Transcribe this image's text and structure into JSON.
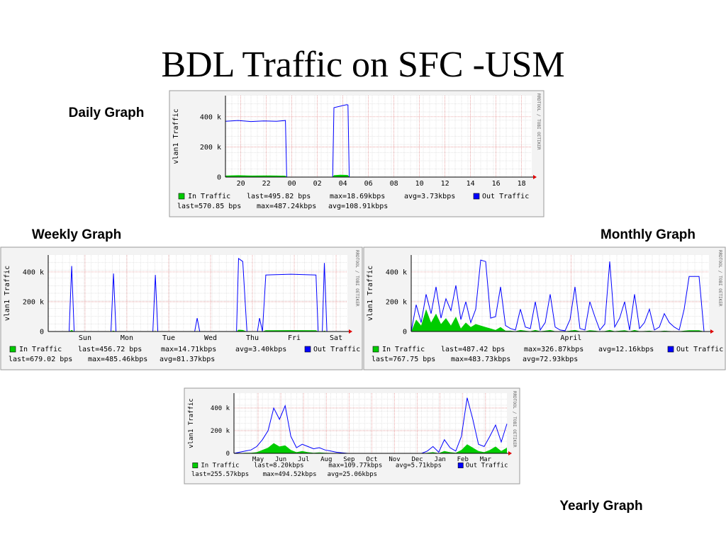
{
  "title": "BDL Traffic on SFC -USM",
  "chart_data": [
    {
      "type": "line",
      "caption": "Daily Graph",
      "ylabel": "vlan1 Traffic",
      "side_text": "RRDTOOL / TOBI OETIKER",
      "grid": true,
      "xlim": [
        0,
        24
      ],
      "xticks": [
        {
          "value": 1.2,
          "label": "20"
        },
        {
          "value": 3.2,
          "label": "22"
        },
        {
          "value": 5.2,
          "label": "00"
        },
        {
          "value": 7.2,
          "label": "02"
        },
        {
          "value": 9.2,
          "label": "04"
        },
        {
          "value": 11.2,
          "label": "06"
        },
        {
          "value": 13.2,
          "label": "08"
        },
        {
          "value": 15.2,
          "label": "10"
        },
        {
          "value": 17.2,
          "label": "12"
        },
        {
          "value": 19.2,
          "label": "14"
        },
        {
          "value": 21.2,
          "label": "16"
        },
        {
          "value": 23.2,
          "label": "18"
        }
      ],
      "ylim": [
        0,
        540000
      ],
      "yticks": [
        0,
        {
          "value": 200000,
          "label": "200 k"
        },
        {
          "value": 400000,
          "label": "400 k"
        }
      ],
      "x": [
        0,
        1,
        2,
        3,
        4,
        4.7,
        4.8,
        8.4,
        8.5,
        9,
        9.5,
        9.6,
        9.7,
        16,
        24
      ],
      "series": [
        {
          "name": "In Traffic",
          "color": "#00cc00",
          "style": "area",
          "stats": [
            "last=495.82 bps",
            "max=18.69kbps",
            "avg=3.73kbps"
          ],
          "values": [
            10000,
            12000,
            10000,
            11000,
            10000,
            9000,
            0,
            0,
            12000,
            15000,
            14000,
            13000,
            0,
            0,
            0
          ]
        },
        {
          "name": "Out Traffic",
          "color": "#0000ff",
          "style": "line",
          "stats": [
            "last=570.85 bps",
            "max=487.24kbps",
            "avg=108.91kbps"
          ],
          "values": [
            370000,
            375000,
            368000,
            372000,
            370000,
            375000,
            0,
            0,
            460000,
            470000,
            480000,
            478000,
            0,
            0,
            0
          ]
        }
      ]
    },
    {
      "type": "line",
      "caption": "Weekly Graph",
      "ylabel": "vlan1 Traffic",
      "side_text": "RRDTOOL / TOBI OETIKER",
      "grid": true,
      "xlim": [
        0,
        7.15
      ],
      "xticks": [
        {
          "value": 0.88,
          "label": "Sun"
        },
        {
          "value": 1.88,
          "label": "Mon"
        },
        {
          "value": 2.88,
          "label": "Tue"
        },
        {
          "value": 3.88,
          "label": "Wed"
        },
        {
          "value": 4.88,
          "label": "Thu"
        },
        {
          "value": 5.88,
          "label": "Fri"
        },
        {
          "value": 6.88,
          "label": "Sat"
        }
      ],
      "ylim": [
        0,
        514000
      ],
      "yticks": [
        0,
        {
          "value": 200000,
          "label": "200 k"
        },
        {
          "value": 400000,
          "label": "400 k"
        }
      ],
      "x": [
        0,
        0.5,
        0.56,
        0.62,
        0.7,
        1.5,
        1.56,
        1.62,
        1.7,
        2.5,
        2.56,
        2.62,
        2.8,
        3.5,
        3.56,
        3.62,
        4.0,
        4.5,
        4.55,
        4.65,
        4.75,
        5.0,
        5.05,
        5.12,
        5.2,
        5.8,
        6.4,
        6.45,
        6.55,
        6.6,
        6.66,
        6.8,
        7.15
      ],
      "series": [
        {
          "name": "In Traffic",
          "color": "#00cc00",
          "style": "area",
          "stats": [
            "last=456.72 bps",
            "max=14.71kbps",
            "avg=3.40kbps"
          ],
          "values": [
            0,
            0,
            10000,
            0,
            0,
            0,
            5000,
            0,
            0,
            0,
            4000,
            0,
            0,
            0,
            3000,
            0,
            0,
            0,
            12000,
            10000,
            0,
            0,
            3000,
            0,
            8000,
            9000,
            8000,
            0,
            0,
            5000,
            0,
            0,
            0
          ]
        },
        {
          "name": "Out Traffic",
          "color": "#0000ff",
          "style": "line",
          "stats": [
            "last=679.02 bps",
            "max=485.46kbps",
            "avg=81.37kbps"
          ],
          "values": [
            0,
            0,
            440000,
            0,
            0,
            0,
            390000,
            0,
            0,
            0,
            380000,
            0,
            0,
            0,
            90000,
            0,
            0,
            0,
            490000,
            470000,
            0,
            0,
            90000,
            0,
            380000,
            385000,
            380000,
            0,
            0,
            460000,
            0,
            0,
            0
          ]
        }
      ]
    },
    {
      "type": "line",
      "caption": "Monthly Graph",
      "ylabel": "vlan1 Traffic",
      "side_text": "RRDTOOL / TOBI OETIKER",
      "grid": true,
      "xlim": [
        0,
        30
      ],
      "xticks": [
        {
          "value": 16.1,
          "label": "April"
        }
      ],
      "ylim": [
        0,
        514000
      ],
      "yticks": [
        0,
        {
          "value": 200000,
          "label": "200 k"
        },
        {
          "value": 400000,
          "label": "400 k"
        }
      ],
      "x": [
        0,
        0.5,
        1,
        1.5,
        2,
        2.5,
        3,
        3.5,
        4,
        4.5,
        5,
        5.5,
        6,
        6.5,
        7,
        7.5,
        8,
        8.5,
        9,
        9.5,
        10,
        10.5,
        11,
        11.5,
        12,
        12.5,
        13,
        13.5,
        14,
        14.5,
        15,
        15.5,
        16,
        16.5,
        17,
        17.5,
        18,
        18.5,
        19,
        19.5,
        20,
        20.5,
        21,
        21.5,
        22,
        22.5,
        23,
        23.5,
        24,
        24.5,
        25,
        25.5,
        26,
        26.5,
        27,
        27.5,
        28,
        28.5,
        29,
        29.5,
        30
      ],
      "series": [
        {
          "name": "In Traffic",
          "color": "#00cc00",
          "style": "area",
          "stats": [
            "last=487.42 bps",
            "max=326.87kbps",
            "avg=12.16kbps"
          ],
          "values": [
            0,
            80000,
            40000,
            150000,
            60000,
            120000,
            50000,
            90000,
            40000,
            100000,
            20000,
            60000,
            30000,
            50000,
            40000,
            30000,
            20000,
            10000,
            30000,
            5000,
            5000,
            2000,
            10000,
            5000,
            2000,
            10000,
            2000,
            5000,
            10000,
            2000,
            2000,
            1000,
            5000,
            10000,
            2000,
            1000,
            8000,
            5000,
            1000,
            3000,
            10000,
            2000,
            5000,
            8000,
            1000,
            10000,
            2000,
            3000,
            5000,
            1000,
            2000,
            5000,
            3000,
            2000,
            1000,
            5000,
            8000,
            8000,
            8000,
            0,
            0
          ]
        },
        {
          "name": "Out Traffic",
          "color": "#0000ff",
          "style": "line",
          "stats": [
            "last=767.75 bps",
            "max=483.73kbps",
            "avg=72.93kbps"
          ],
          "values": [
            0,
            180000,
            60000,
            250000,
            120000,
            300000,
            90000,
            220000,
            140000,
            310000,
            80000,
            200000,
            60000,
            150000,
            480000,
            470000,
            90000,
            100000,
            300000,
            40000,
            20000,
            10000,
            150000,
            30000,
            20000,
            200000,
            10000,
            60000,
            250000,
            30000,
            10000,
            5000,
            80000,
            300000,
            20000,
            10000,
            200000,
            100000,
            10000,
            50000,
            470000,
            30000,
            90000,
            200000,
            10000,
            250000,
            20000,
            60000,
            150000,
            10000,
            30000,
            120000,
            60000,
            30000,
            10000,
            150000,
            370000,
            370000,
            370000,
            0,
            0
          ]
        }
      ]
    },
    {
      "type": "line",
      "caption": "Yearly Graph",
      "ylabel": "vlan1 Traffic",
      "side_text": "RRDTOOL / TOBI OETIKER",
      "grid": true,
      "xlim": [
        0,
        12
      ],
      "xticks": [
        {
          "value": 1.06,
          "label": "May"
        },
        {
          "value": 2.06,
          "label": "Jun"
        },
        {
          "value": 3.06,
          "label": "Jul"
        },
        {
          "value": 4.06,
          "label": "Aug"
        },
        {
          "value": 5.06,
          "label": "Sep"
        },
        {
          "value": 6.06,
          "label": "Oct"
        },
        {
          "value": 7.06,
          "label": "Nov"
        },
        {
          "value": 8.06,
          "label": "Dec"
        },
        {
          "value": 9.06,
          "label": "Jan"
        },
        {
          "value": 10.06,
          "label": "Feb"
        },
        {
          "value": 11.06,
          "label": "Mar"
        }
      ],
      "ylim": [
        0,
        531000
      ],
      "yticks": [
        0,
        {
          "value": 200000,
          "label": "200 k"
        },
        {
          "value": 400000,
          "label": "400 k"
        }
      ],
      "x": [
        0,
        0.25,
        0.5,
        0.75,
        1,
        1.25,
        1.5,
        1.75,
        2,
        2.25,
        2.5,
        2.75,
        3,
        3.25,
        3.5,
        3.75,
        4,
        4.25,
        4.5,
        4.75,
        5,
        5.25,
        5.5,
        5.75,
        6,
        6.25,
        6.5,
        6.75,
        7,
        7.25,
        7.5,
        7.75,
        8,
        8.25,
        8.5,
        8.75,
        9,
        9.25,
        9.5,
        9.75,
        10,
        10.25,
        10.5,
        10.75,
        11,
        11.25,
        11.5,
        11.75,
        12
      ],
      "series": [
        {
          "name": "In Traffic",
          "color": "#00cc00",
          "style": "area",
          "stats": [
            "last=8.20kbps",
            "max=109.77kbps",
            "avg=5.71kbps"
          ],
          "values": [
            0,
            2000,
            5000,
            5000,
            10000,
            30000,
            50000,
            90000,
            60000,
            70000,
            30000,
            10000,
            20000,
            10000,
            5000,
            8000,
            5000,
            3000,
            2000,
            1000,
            0,
            0,
            0,
            0,
            0,
            0,
            0,
            0,
            0,
            0,
            0,
            0,
            0,
            0,
            5000,
            10000,
            2000,
            20000,
            10000,
            5000,
            30000,
            80000,
            50000,
            20000,
            10000,
            30000,
            60000,
            20000,
            50000
          ]
        },
        {
          "name": "Out Traffic",
          "color": "#0000ff",
          "style": "line",
          "stats": [
            "last=255.57kbps",
            "max=494.52kbps",
            "avg=25.06kbps"
          ],
          "values": [
            0,
            10000,
            20000,
            30000,
            60000,
            120000,
            200000,
            400000,
            300000,
            420000,
            150000,
            50000,
            80000,
            60000,
            40000,
            50000,
            30000,
            20000,
            10000,
            5000,
            0,
            0,
            0,
            0,
            0,
            0,
            0,
            0,
            0,
            0,
            0,
            0,
            0,
            0,
            20000,
            60000,
            10000,
            120000,
            50000,
            20000,
            150000,
            490000,
            300000,
            80000,
            60000,
            150000,
            250000,
            100000,
            260000
          ]
        }
      ]
    }
  ]
}
